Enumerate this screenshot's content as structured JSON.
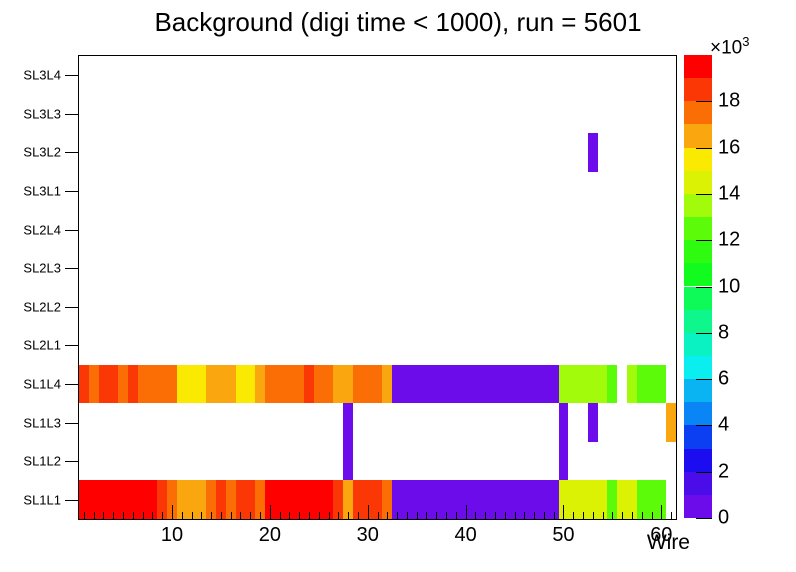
{
  "window": {
    "background": "#ffffff"
  },
  "chart_data": {
    "type": "heatmap",
    "title": "Background (digi time < 1000), run = 5601",
    "xlabel": "Wire",
    "x_range": [
      0.5,
      61.5
    ],
    "x_major_ticks": [
      10,
      20,
      30,
      40,
      50,
      60
    ],
    "y_categories": [
      "SL1L1",
      "SL1L2",
      "SL1L3",
      "SL1L4",
      "SL2L1",
      "SL2L2",
      "SL2L3",
      "SL2L4",
      "SL3L1",
      "SL3L2",
      "SL3L3",
      "SL3L4"
    ],
    "grid": false,
    "legend_position": "right-colorbar",
    "palette": [
      "#6d0cea",
      "#4a0ce8",
      "#1c0cf0",
      "#0d3ff2",
      "#0a85f5",
      "#0ab4f2",
      "#0aeef0",
      "#0af2c2",
      "#0df78c",
      "#0dfa59",
      "#12fb1e",
      "#2efb0f",
      "#5cfb0a",
      "#a2fb0a",
      "#dcf205",
      "#fae900",
      "#faa70f",
      "#fb6d05",
      "#fb3805",
      "#fe0000"
    ],
    "colorbar": {
      "min": 0,
      "max": 20000,
      "band_size": 1000,
      "exponent_mantissa": "×10",
      "exponent": "3",
      "tick_values": [
        0,
        2000,
        4000,
        6000,
        8000,
        10000,
        12000,
        14000,
        16000,
        18000
      ],
      "tick_labels": [
        "0",
        "2",
        "4",
        "6",
        "8",
        "10",
        "12",
        "14",
        "16",
        "18"
      ]
    },
    "rows": [
      {
        "row": "SL1L1",
        "segments": [
          [
            1,
            8,
            19
          ],
          [
            9,
            9,
            18
          ],
          [
            10,
            10,
            17
          ],
          [
            11,
            13,
            16
          ],
          [
            14,
            14,
            17
          ],
          [
            15,
            15,
            18
          ],
          [
            16,
            16,
            17
          ],
          [
            17,
            18,
            18
          ],
          [
            19,
            19,
            17
          ],
          [
            20,
            26,
            19
          ],
          [
            27,
            27,
            18
          ],
          [
            28,
            28,
            16
          ],
          [
            29,
            31,
            18
          ],
          [
            32,
            32,
            17
          ],
          [
            33,
            49,
            0
          ],
          [
            50,
            54,
            14
          ],
          [
            55,
            55,
            12
          ],
          [
            56,
            57,
            14
          ],
          [
            58,
            60,
            12
          ]
        ]
      },
      {
        "row": "SL1L2",
        "segments": [
          [
            28,
            28,
            0
          ],
          [
            50,
            50,
            0
          ]
        ]
      },
      {
        "row": "SL1L3",
        "segments": [
          [
            28,
            28,
            0
          ],
          [
            50,
            50,
            0
          ],
          [
            53,
            53,
            0
          ],
          [
            61,
            61,
            16
          ]
        ]
      },
      {
        "row": "SL1L4",
        "segments": [
          [
            1,
            1,
            18
          ],
          [
            2,
            2,
            17
          ],
          [
            3,
            4,
            18
          ],
          [
            5,
            5,
            17
          ],
          [
            6,
            6,
            18
          ],
          [
            7,
            10,
            17
          ],
          [
            11,
            13,
            15
          ],
          [
            14,
            16,
            16
          ],
          [
            17,
            18,
            15
          ],
          [
            19,
            19,
            16
          ],
          [
            20,
            23,
            17
          ],
          [
            24,
            24,
            18
          ],
          [
            25,
            26,
            17
          ],
          [
            27,
            28,
            16
          ],
          [
            29,
            31,
            17
          ],
          [
            32,
            32,
            16
          ],
          [
            33,
            49,
            0
          ],
          [
            50,
            54,
            13
          ],
          [
            55,
            55,
            12
          ],
          [
            57,
            57,
            13
          ],
          [
            58,
            60,
            12
          ]
        ]
      },
      {
        "row": "SL3L2",
        "segments": [
          [
            53,
            53,
            0
          ]
        ]
      }
    ]
  }
}
